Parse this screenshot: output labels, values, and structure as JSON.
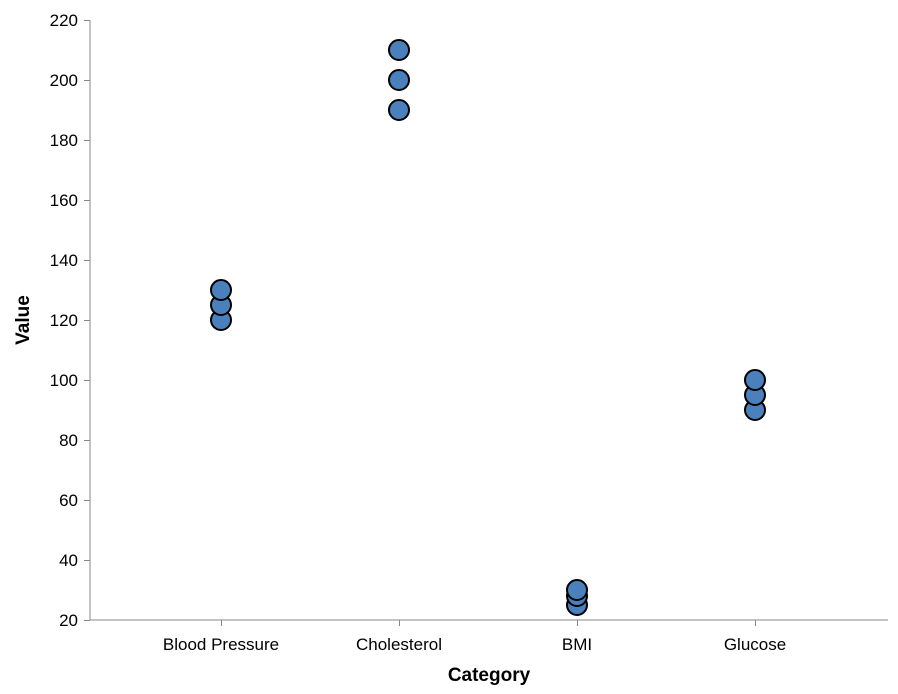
{
  "chart_data": {
    "type": "scatter",
    "title": "",
    "xlabel": "Category",
    "ylabel": "Value",
    "categories": [
      "Blood Pressure",
      "Cholesterol",
      "BMI",
      "Glucose"
    ],
    "points": [
      {
        "x": "Blood Pressure",
        "y": 120
      },
      {
        "x": "Blood Pressure",
        "y": 125
      },
      {
        "x": "Blood Pressure",
        "y": 130
      },
      {
        "x": "Cholesterol",
        "y": 190
      },
      {
        "x": "Cholesterol",
        "y": 200
      },
      {
        "x": "Cholesterol",
        "y": 210
      },
      {
        "x": "BMI",
        "y": 25
      },
      {
        "x": "BMI",
        "y": 28
      },
      {
        "x": "BMI",
        "y": 30
      },
      {
        "x": "Glucose",
        "y": 90
      },
      {
        "x": "Glucose",
        "y": 95
      },
      {
        "x": "Glucose",
        "y": 100
      }
    ],
    "ylim": [
      20,
      220
    ],
    "yticks": [
      20,
      40,
      60,
      80,
      100,
      120,
      140,
      160,
      180,
      200,
      220
    ],
    "grid": false,
    "legend": "none",
    "colors": {
      "point_fill": "#4a80bb",
      "point_stroke": "#000000",
      "axis": "#888888"
    }
  }
}
